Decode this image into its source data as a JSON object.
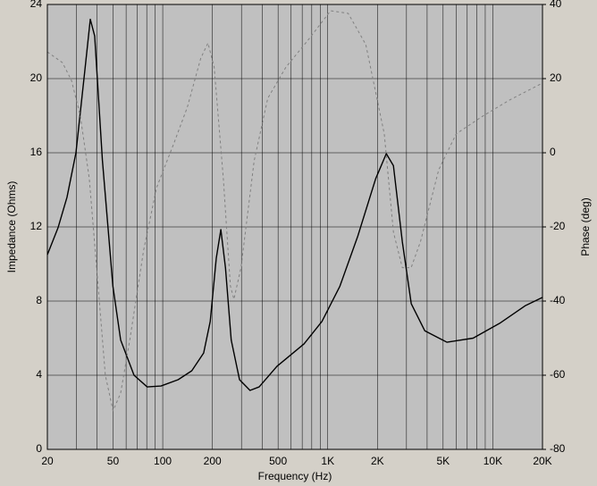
{
  "chart_data": {
    "type": "line",
    "xlabel": "Frequency (Hz)",
    "ylabel": "Impedance (Ohms)",
    "y2label": "Phase (deg)",
    "xscale": "log",
    "grid": true,
    "xlim": [
      20,
      20000
    ],
    "xticks": [
      20,
      50,
      100,
      200,
      500,
      {
        "value": 1000,
        "label": "1K"
      },
      {
        "value": 2000,
        "label": "2K"
      },
      {
        "value": 5000,
        "label": "5K"
      },
      {
        "value": 10000,
        "label": "10K"
      },
      {
        "value": 20000,
        "label": "20K"
      }
    ],
    "xgrid": [
      30,
      40,
      60,
      70,
      80,
      90,
      300,
      400,
      600,
      700,
      800,
      900,
      3000,
      4000,
      6000,
      7000,
      8000,
      9000
    ],
    "ylim": [
      0,
      24
    ],
    "yticks": [
      0,
      4,
      8,
      12,
      16,
      20,
      24
    ],
    "y2lim": [
      -80,
      40
    ],
    "y2ticks": [
      -80,
      -60,
      -40,
      -20,
      0,
      20,
      40
    ],
    "series": [
      {
        "name": "Impedance",
        "color": "#000000",
        "dash": "none",
        "x": [
          20,
          23.2,
          26.3,
          29.8,
          33.7,
          36.4,
          38.7,
          43.1,
          49.9,
          55.6,
          67,
          80.5,
          97.6,
          124,
          150,
          177,
          194,
          211,
          225,
          240,
          260,
          292,
          338,
          384,
          492,
          718,
          922,
          1184,
          1520,
          1951,
          2263,
          2500,
          2830,
          3205,
          3870,
          5270,
          7600,
          11000,
          15800,
          20000
        ],
        "values": [
          10.5,
          11.95,
          13.6,
          16.0,
          20.4,
          23.2,
          22.3,
          15.6,
          8.8,
          5.9,
          4.0,
          3.37,
          3.42,
          3.76,
          4.24,
          5.2,
          6.9,
          10.3,
          11.86,
          9.8,
          5.9,
          3.76,
          3.18,
          3.37,
          4.48,
          5.69,
          6.9,
          8.8,
          11.5,
          14.6,
          15.95,
          15.3,
          11.2,
          7.86,
          6.4,
          5.78,
          6.0,
          6.8,
          7.76,
          8.2
        ]
      },
      {
        "name": "Phase",
        "color": "#808080",
        "dash": "3,3",
        "axis": "y2",
        "x": [
          20,
          24.7,
          28,
          31.7,
          35.9,
          40.6,
          44.9,
          50,
          55.6,
          63.2,
          76.6,
          91.8,
          117,
          141,
          170,
          188,
          205,
          233,
          257,
          270,
          298,
          358,
          433,
          558,
          760,
          1040,
          1330,
          1700,
          2200,
          2500,
          2830,
          3200,
          3650,
          4700,
          6000,
          8700,
          12600,
          20000
        ],
        "values": [
          27.2,
          24.3,
          19.5,
          9.9,
          -7,
          -35.9,
          -60,
          -69.6,
          -64.8,
          -50.4,
          -26.3,
          -9.4,
          2.6,
          12.3,
          25.5,
          29.6,
          23.1,
          -7,
          -35.9,
          -39.5,
          -31,
          -2.2,
          14.7,
          23.1,
          30.4,
          38.3,
          37.6,
          29.2,
          5.1,
          -21.4,
          -31,
          -31,
          -23.9,
          -4.6,
          5.1,
          9.9,
          14.2,
          18.8
        ]
      }
    ]
  }
}
